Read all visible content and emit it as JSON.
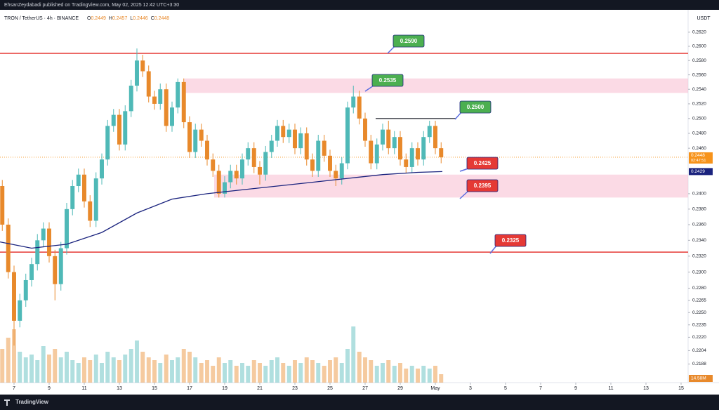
{
  "header": "EhsanZeydabadi published on TradingView.com, May 02, 2025 12:42 UTC+3:30",
  "footer": "TradingView",
  "chart_data": {
    "type": "candlestick",
    "symbol": "TRON / TetherUS · 4h · BINANCE",
    "legend_ohlc": [
      {
        "key": "O",
        "value": 0.2449
      },
      {
        "key": "H",
        "value": 0.2457
      },
      {
        "key": "L",
        "value": 0.2446
      },
      {
        "key": "C",
        "value": 0.2448
      }
    ],
    "currency": "USDT",
    "log": true,
    "up_color": "#4fb9b7",
    "down_color": "#e8892b",
    "x": [
      6.33,
      6.67,
      7,
      7.33,
      7.67,
      8,
      8.33,
      8.67,
      9,
      9.33,
      9.67,
      10,
      10.33,
      10.67,
      11,
      11.33,
      11.67,
      12,
      12.33,
      12.67,
      13,
      13.33,
      13.67,
      14,
      14.33,
      14.67,
      15,
      15.33,
      15.67,
      16,
      16.33,
      16.67,
      17,
      17.33,
      17.67,
      18,
      18.33,
      18.67,
      19,
      19.33,
      19.67,
      20,
      20.33,
      20.67,
      21,
      21.33,
      21.67,
      22,
      22.33,
      22.67,
      23,
      23.33,
      23.67,
      24,
      24.33,
      24.67,
      25,
      25.33,
      25.67,
      26,
      26.33,
      26.67,
      27,
      27.33,
      27.67,
      28,
      28.33,
      28.67,
      29,
      29.33,
      29.67,
      30,
      30.33,
      30.67,
      31,
      31.33
    ],
    "open": [
      0.241,
      0.236,
      0.23,
      0.224,
      0.2265,
      0.229,
      0.231,
      0.234,
      0.2355,
      0.232,
      0.2285,
      0.233,
      0.238,
      0.241,
      0.2425,
      0.239,
      0.2365,
      0.242,
      0.2445,
      0.249,
      0.2505,
      0.2465,
      0.251,
      0.2545,
      0.258,
      0.2565,
      0.253,
      0.252,
      0.254,
      0.249,
      0.2515,
      0.255,
      0.2495,
      0.2455,
      0.2485,
      0.247,
      0.2445,
      0.243,
      0.24,
      0.2415,
      0.243,
      0.242,
      0.2445,
      0.246,
      0.2435,
      0.2425,
      0.2455,
      0.247,
      0.249,
      0.2475,
      0.2485,
      0.246,
      0.248,
      0.2445,
      0.243,
      0.247,
      0.245,
      0.243,
      0.242,
      0.244,
      0.2515,
      0.253,
      0.25,
      0.247,
      0.244,
      0.2465,
      0.2485,
      0.246,
      0.2475,
      0.2445,
      0.2435,
      0.246,
      0.2445,
      0.2475,
      0.249,
      0.246
    ],
    "high": [
      0.2418,
      0.2368,
      0.2308,
      0.2273,
      0.2298,
      0.2318,
      0.2348,
      0.2363,
      0.2363,
      0.2328,
      0.2338,
      0.2388,
      0.2418,
      0.2433,
      0.2433,
      0.2398,
      0.2428,
      0.2453,
      0.2498,
      0.2513,
      0.2513,
      0.2518,
      0.2553,
      0.2597,
      0.2588,
      0.2573,
      0.2538,
      0.2548,
      0.2548,
      0.2523,
      0.2555,
      0.2555,
      0.2503,
      0.2493,
      0.2493,
      0.2478,
      0.2453,
      0.2438,
      0.2423,
      0.2438,
      0.2438,
      0.2453,
      0.2468,
      0.2468,
      0.2443,
      0.2463,
      0.2478,
      0.2498,
      0.2498,
      0.2493,
      0.2493,
      0.2488,
      0.2488,
      0.2453,
      0.2478,
      0.2478,
      0.2458,
      0.2438,
      0.2448,
      0.2523,
      0.2545,
      0.2538,
      0.2508,
      0.2478,
      0.2473,
      0.2493,
      0.2497,
      0.2483,
      0.2483,
      0.2453,
      0.2468,
      0.2468,
      0.2483,
      0.2497,
      0.2497,
      0.2468
    ],
    "low": [
      0.2352,
      0.2292,
      0.221,
      0.2232,
      0.2257,
      0.2282,
      0.2302,
      0.2332,
      0.2312,
      0.2265,
      0.2277,
      0.2322,
      0.2372,
      0.2402,
      0.2382,
      0.2357,
      0.2357,
      0.2412,
      0.2437,
      0.2482,
      0.2457,
      0.2457,
      0.2502,
      0.2537,
      0.2557,
      0.2522,
      0.2512,
      0.2512,
      0.2482,
      0.2482,
      0.2507,
      0.2487,
      0.2447,
      0.2447,
      0.2462,
      0.2437,
      0.2422,
      0.2395,
      0.2395,
      0.2407,
      0.2412,
      0.2412,
      0.2437,
      0.2427,
      0.2412,
      0.2417,
      0.2447,
      0.2462,
      0.2467,
      0.2467,
      0.2452,
      0.2452,
      0.2437,
      0.2422,
      0.2422,
      0.2442,
      0.2422,
      0.241,
      0.2412,
      0.2432,
      0.2507,
      0.2492,
      0.2462,
      0.2432,
      0.2432,
      0.2457,
      0.2452,
      0.2452,
      0.2437,
      0.2427,
      0.2427,
      0.2437,
      0.2437,
      0.2467,
      0.2452,
      0.244
    ],
    "close": [
      0.236,
      0.23,
      0.224,
      0.2265,
      0.229,
      0.231,
      0.234,
      0.2355,
      0.232,
      0.2285,
      0.233,
      0.238,
      0.241,
      0.2425,
      0.239,
      0.2365,
      0.242,
      0.2445,
      0.249,
      0.2505,
      0.2465,
      0.251,
      0.2545,
      0.258,
      0.2565,
      0.253,
      0.252,
      0.254,
      0.249,
      0.2515,
      0.255,
      0.2495,
      0.2455,
      0.2485,
      0.247,
      0.2445,
      0.243,
      0.24,
      0.2415,
      0.243,
      0.242,
      0.2445,
      0.246,
      0.2435,
      0.2425,
      0.2455,
      0.247,
      0.249,
      0.2475,
      0.2485,
      0.246,
      0.248,
      0.2445,
      0.243,
      0.247,
      0.245,
      0.243,
      0.242,
      0.244,
      0.2515,
      0.253,
      0.25,
      0.247,
      0.244,
      0.2465,
      0.2485,
      0.246,
      0.2475,
      0.2445,
      0.2435,
      0.246,
      0.2445,
      0.2475,
      0.249,
      0.246,
      0.2448
    ],
    "volume": [
      12,
      16,
      19,
      11,
      9,
      10,
      8,
      13,
      10,
      12,
      9,
      11,
      8,
      7,
      9,
      8,
      10,
      7,
      11,
      9,
      8,
      10,
      12,
      15,
      11,
      9,
      8,
      7,
      10,
      8,
      9,
      12,
      11,
      9,
      7,
      8,
      6,
      9,
      7,
      8,
      6,
      7,
      6,
      8,
      7,
      6,
      8,
      9,
      7,
      6,
      8,
      7,
      9,
      8,
      7,
      6,
      8,
      9,
      7,
      12,
      20,
      11,
      9,
      8,
      6,
      7,
      8,
      6,
      7,
      5,
      6,
      5,
      6,
      5,
      6,
      3
    ],
    "vlim": [
      0,
      20
    ],
    "volume_label": "14.58M",
    "xlim": [
      6.2,
      45.4
    ],
    "xticks": [
      7,
      9,
      11,
      13,
      15,
      17,
      19,
      21,
      23,
      25,
      27,
      29,
      {
        "value": 31,
        "label": "May"
      },
      {
        "value": 33,
        "label": "3"
      },
      {
        "value": 35,
        "label": "5"
      },
      {
        "value": 37,
        "label": "7"
      },
      {
        "value": 39,
        "label": "9"
      },
      {
        "value": 41,
        "label": "11"
      },
      {
        "value": 43,
        "label": "13"
      },
      {
        "value": 45,
        "label": "15"
      }
    ],
    "ylim": [
      0.2166,
      0.2652
    ],
    "yticks": [
      {
        "value": 0.262,
        "label": "0.2620"
      },
      {
        "value": 0.26,
        "label": "0.2600"
      },
      {
        "value": 0.258,
        "label": "0.2580"
      },
      {
        "value": 0.256,
        "label": "0.2560"
      },
      {
        "value": 0.254,
        "label": "0.2540"
      },
      {
        "value": 0.252,
        "label": "0.2520"
      },
      {
        "value": 0.25,
        "label": "0.2500"
      },
      {
        "value": 0.248,
        "label": "0.2480"
      },
      {
        "value": 0.246,
        "label": "0.2460"
      },
      {
        "value": 0.24,
        "label": "0.2400"
      },
      {
        "value": 0.238,
        "label": "0.2380"
      },
      {
        "value": 0.236,
        "label": "0.2360"
      },
      {
        "value": 0.234,
        "label": "0.2340"
      },
      {
        "value": 0.232,
        "label": "0.2320"
      },
      {
        "value": 0.23,
        "label": "0.2300"
      },
      {
        "value": 0.228,
        "label": "0.2280"
      },
      {
        "value": 0.2265,
        "label": "0.2265"
      },
      {
        "value": 0.225,
        "label": "0.2250"
      },
      {
        "value": 0.2235,
        "label": "0.2235"
      },
      {
        "value": 0.222,
        "label": "0.2220"
      },
      {
        "value": 0.2204,
        "label": "0.2204"
      },
      {
        "value": 0.2188,
        "label": "0.2188"
      }
    ],
    "ma": {
      "color": "#1a237e",
      "x": [
        6.2,
        8,
        10,
        12,
        14,
        16,
        18,
        20,
        22,
        24,
        26,
        28,
        30,
        31.4
      ],
      "values": [
        0.2338,
        0.233,
        0.2335,
        0.235,
        0.2375,
        0.2393,
        0.24,
        0.2405,
        0.241,
        0.2415,
        0.242,
        0.2425,
        0.2428,
        0.2429
      ],
      "last_label": "0.2429"
    },
    "price_label": {
      "value": 0.2448,
      "label": "0.2448",
      "countdown": "02:47:51",
      "color": "#f7931a"
    },
    "levels": [
      {
        "value": 0.259,
        "color": "#e53935"
      },
      {
        "value": 0.2325,
        "color": "#e53935"
      }
    ],
    "zones": [
      {
        "from": 16.7,
        "low": 0.2535,
        "high": 0.2555
      },
      {
        "from": 18.4,
        "low": 0.2395,
        "high": 0.2425
      }
    ],
    "segment": {
      "from": 27.6,
      "to": 32.2,
      "value": 0.25
    },
    "annotations": [
      {
        "text": "0.2590",
        "color": "#4caf50"
      },
      {
        "text": "0.2535",
        "color": "#4caf50"
      },
      {
        "text": "0.2500",
        "color": "#4caf50"
      },
      {
        "text": "0.2425",
        "color": "#e53935"
      },
      {
        "text": "0.2395",
        "color": "#e53935"
      },
      {
        "text": "0.2325",
        "color": "#e53935"
      }
    ]
  }
}
